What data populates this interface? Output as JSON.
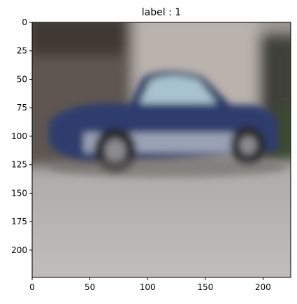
{
  "figure": {
    "title": "label : 1",
    "image_subject": "blurred blue car parked in front of a building",
    "colors": {
      "car_body": "#2f3e6e",
      "ground": "#b8b7b4",
      "wall": "#8f8a86",
      "window": "#a7c3cf"
    }
  },
  "axes": {
    "x_ticks": [
      {
        "value": 0,
        "label": "0"
      },
      {
        "value": 50,
        "label": "50"
      },
      {
        "value": 100,
        "label": "100"
      },
      {
        "value": 150,
        "label": "150"
      },
      {
        "value": 200,
        "label": "200"
      }
    ],
    "y_ticks": [
      {
        "value": 0,
        "label": "0"
      },
      {
        "value": 25,
        "label": "25"
      },
      {
        "value": 50,
        "label": "50"
      },
      {
        "value": 75,
        "label": "75"
      },
      {
        "value": 100,
        "label": "100"
      },
      {
        "value": 125,
        "label": "125"
      },
      {
        "value": 150,
        "label": "150"
      },
      {
        "value": 175,
        "label": "175"
      },
      {
        "value": 200,
        "label": "200"
      }
    ],
    "x_range": [
      0,
      224
    ],
    "y_range": [
      0,
      224
    ]
  }
}
